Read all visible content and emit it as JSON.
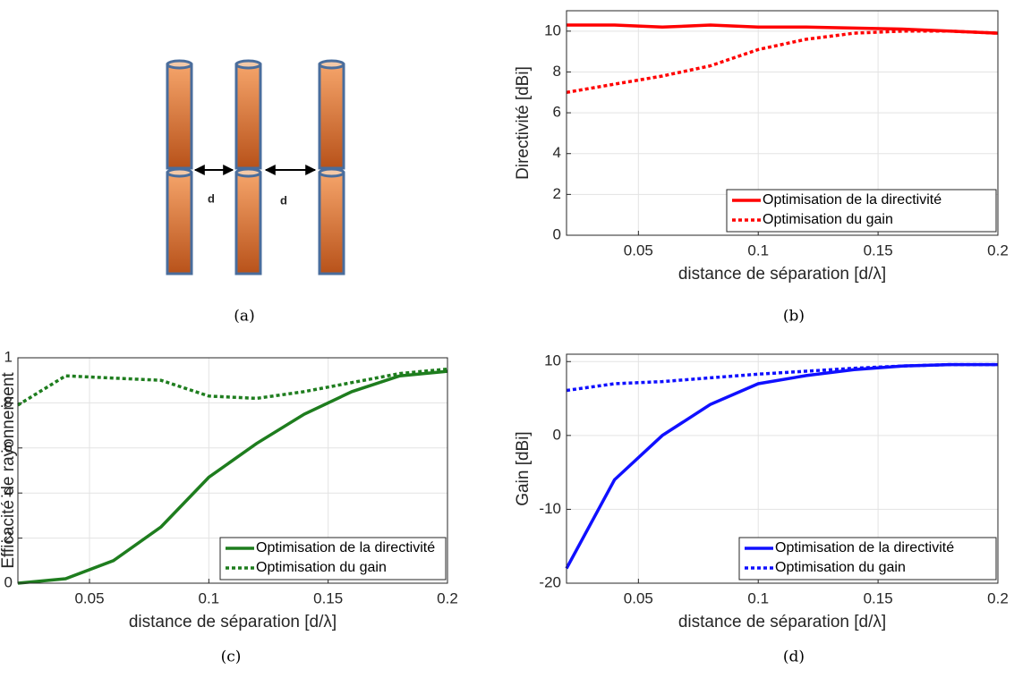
{
  "diagram": {
    "labels": [
      "d",
      "d"
    ],
    "caption": "(a)"
  },
  "chart_data": [
    {
      "type": "line",
      "caption": "(b)",
      "xlabel": "distance de séparation [d/λ]",
      "ylabel": "Directivité [dBi]",
      "x": [
        0.02,
        0.04,
        0.06,
        0.08,
        0.1,
        0.12,
        0.14,
        0.16,
        0.18,
        0.2
      ],
      "xlim": [
        0.02,
        0.2
      ],
      "xticks": [
        0.05,
        0.1,
        0.15,
        0.2
      ],
      "ylim": [
        0,
        11
      ],
      "yticks": [
        0,
        2,
        4,
        6,
        8,
        10
      ],
      "grid": true,
      "legend": "lower right",
      "series": [
        {
          "name": "Optimisation de la directivité",
          "color": "#ff0000",
          "style": "solid",
          "values": [
            10.3,
            10.3,
            10.2,
            10.3,
            10.2,
            10.2,
            10.15,
            10.1,
            10.0,
            9.9
          ]
        },
        {
          "name": "Optimisation du gain",
          "color": "#ff0000",
          "style": "dotted",
          "values": [
            7.0,
            7.4,
            7.8,
            8.3,
            9.1,
            9.6,
            9.9,
            10.0,
            10.0,
            9.9
          ]
        }
      ]
    },
    {
      "type": "line",
      "caption": "(c)",
      "xlabel": "distance de séparation [d/λ]",
      "ylabel": "Efficacité de rayonnement",
      "x": [
        0.02,
        0.04,
        0.06,
        0.08,
        0.1,
        0.12,
        0.14,
        0.16,
        0.18,
        0.2
      ],
      "xlim": [
        0.02,
        0.2
      ],
      "xticks": [
        0.05,
        0.1,
        0.15,
        0.2
      ],
      "ylim": [
        0,
        1
      ],
      "yticks": [
        0,
        0.2,
        0.4,
        0.6,
        0.8,
        1
      ],
      "grid": true,
      "legend": "lower right",
      "series": [
        {
          "name": "Optimisation de la directivité",
          "color": "#1e7d1e",
          "style": "solid",
          "values": [
            0,
            0.02,
            0.1,
            0.25,
            0.47,
            0.62,
            0.75,
            0.85,
            0.92,
            0.94
          ]
        },
        {
          "name": "Optimisation du gain",
          "color": "#1e7d1e",
          "style": "dotted",
          "values": [
            0.79,
            0.92,
            0.91,
            0.9,
            0.83,
            0.82,
            0.85,
            0.89,
            0.93,
            0.95
          ]
        }
      ]
    },
    {
      "type": "line",
      "caption": "(d)",
      "xlabel": "distance de séparation [d/λ]",
      "ylabel": "Gain [dBi]",
      "x": [
        0.02,
        0.04,
        0.06,
        0.08,
        0.1,
        0.12,
        0.14,
        0.16,
        0.18,
        0.2
      ],
      "xlim": [
        0.02,
        0.2
      ],
      "xticks": [
        0.05,
        0.1,
        0.15,
        0.2
      ],
      "ylim": [
        -20,
        11
      ],
      "yticks": [
        -20,
        -10,
        0,
        10
      ],
      "grid": true,
      "legend": "lower right",
      "series": [
        {
          "name": "Optimisation de la directivité",
          "color": "#1010ff",
          "style": "solid",
          "values": [
            -18,
            -6,
            0,
            4.2,
            7,
            8.1,
            8.9,
            9.4,
            9.6,
            9.6
          ]
        },
        {
          "name": "Optimisation du gain",
          "color": "#1010ff",
          "style": "dotted",
          "values": [
            6.1,
            7,
            7.3,
            7.8,
            8.3,
            8.7,
            9.1,
            9.4,
            9.6,
            9.6
          ]
        }
      ]
    }
  ]
}
